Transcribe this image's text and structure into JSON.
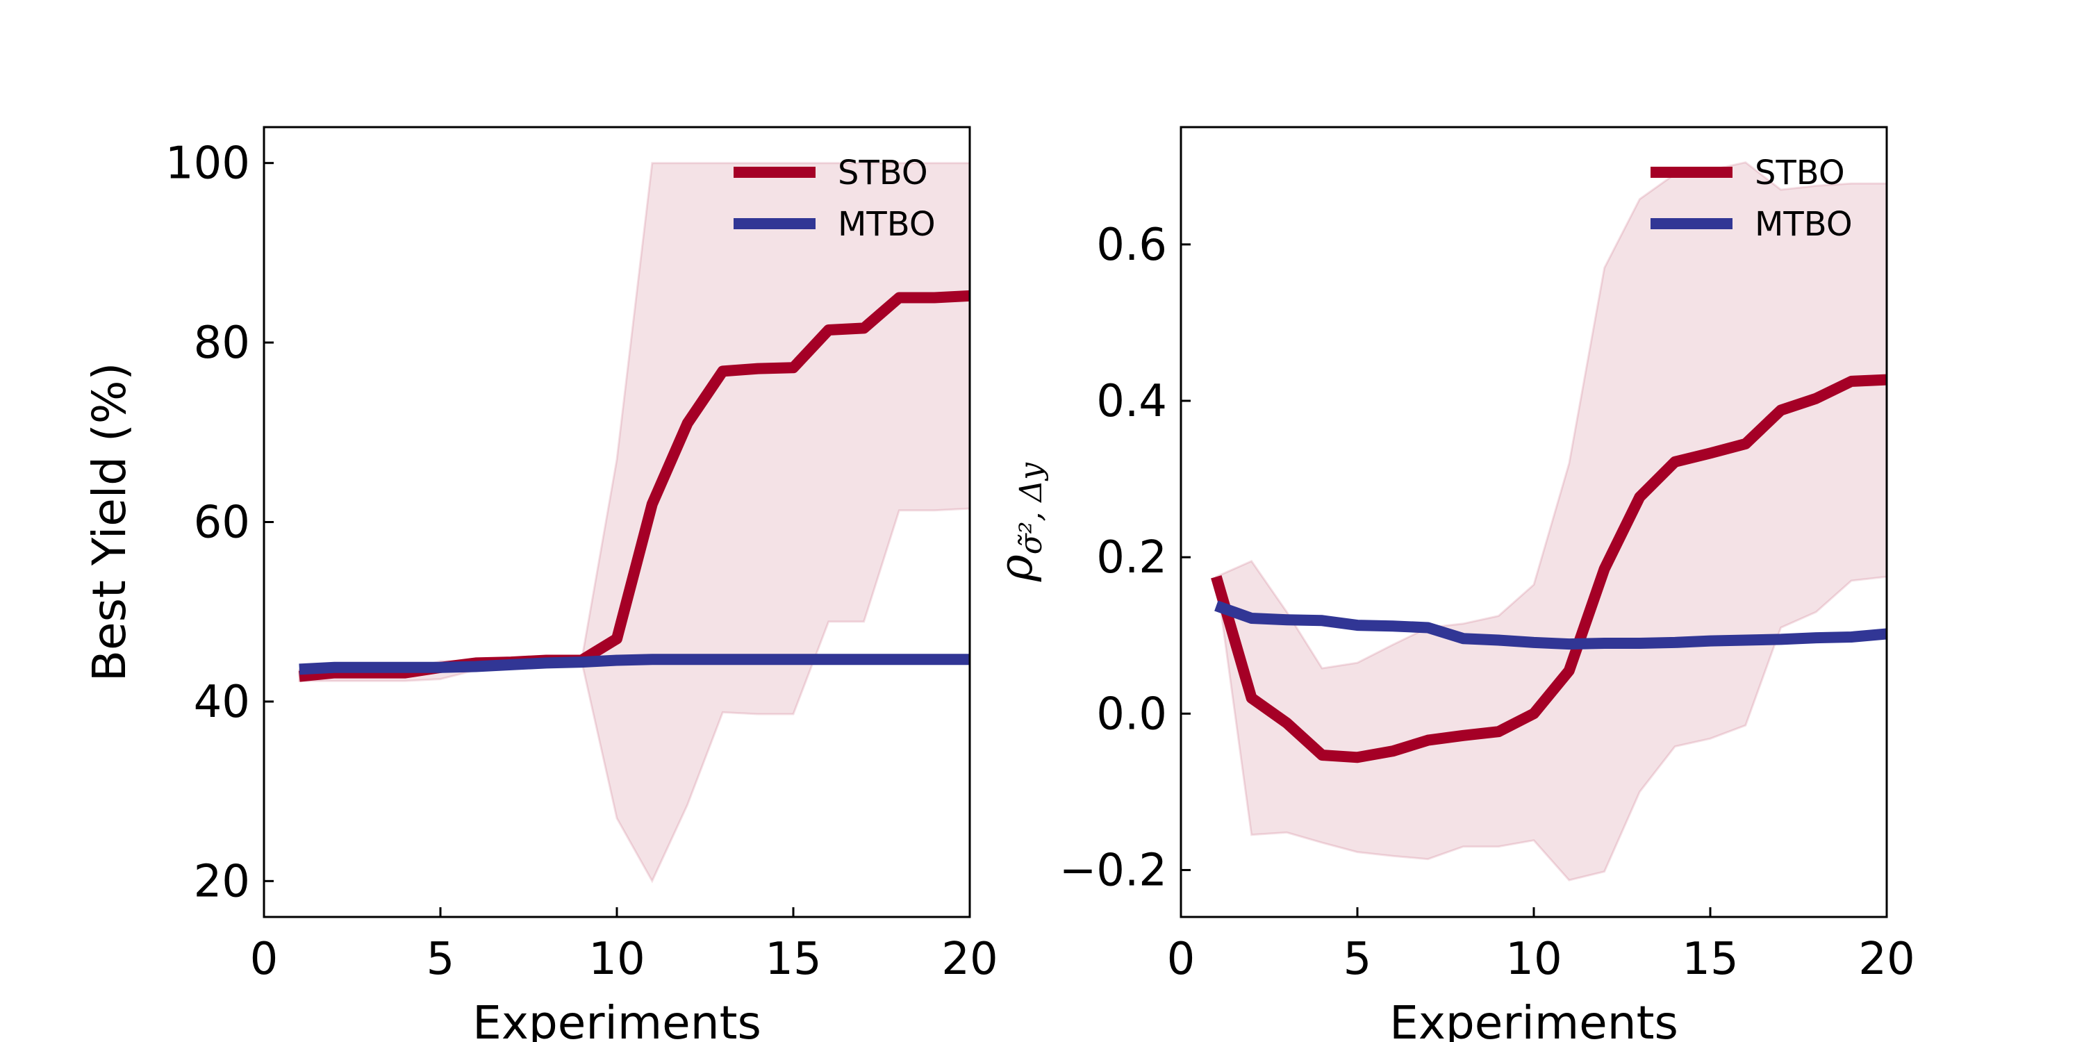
{
  "chart_data": [
    {
      "type": "line",
      "title": "",
      "xlabel": "Experiments",
      "ylabel": "Best Yield (%)",
      "xlim": [
        0,
        20
      ],
      "ylim": [
        16,
        104
      ],
      "xticks": [
        0,
        5,
        10,
        15,
        20
      ],
      "yticks": [
        20,
        40,
        60,
        80,
        100
      ],
      "xtick_labels": [
        "0",
        "5",
        "10",
        "15",
        "20"
      ],
      "ytick_labels": [
        "20",
        "40",
        "60",
        "80",
        "100"
      ],
      "grid": false,
      "legend_position": "top-right",
      "x": [
        1,
        2,
        3,
        4,
        5,
        6,
        7,
        8,
        9,
        10,
        11,
        12,
        13,
        14,
        15,
        16,
        17,
        18,
        19,
        20
      ],
      "series": [
        {
          "name": "STBO",
          "color": "#a50026",
          "values": [
            42.8,
            43.2,
            43.2,
            43.2,
            43.8,
            44.3,
            44.4,
            44.6,
            44.6,
            47.0,
            62.0,
            71.0,
            76.8,
            77.1,
            77.2,
            81.4,
            81.6,
            85.0,
            85.0,
            85.2
          ],
          "band_upper": [
            43.5,
            43.5,
            43.5,
            43.5,
            44.5,
            44.5,
            44.5,
            44.5,
            44.6,
            67.0,
            100,
            100,
            100,
            100,
            100,
            100,
            100,
            100,
            100,
            100
          ],
          "band_lower": [
            42.3,
            42.3,
            42.3,
            42.3,
            42.5,
            43.5,
            44.0,
            44.3,
            44.5,
            27.0,
            20.0,
            28.5,
            38.8,
            38.6,
            38.6,
            48.9,
            48.9,
            61.3,
            61.3,
            61.5
          ]
        },
        {
          "name": "MTBO",
          "color": "#313695",
          "values": [
            43.6,
            43.8,
            43.8,
            43.8,
            43.8,
            43.9,
            44.1,
            44.3,
            44.4,
            44.6,
            44.7,
            44.7,
            44.7,
            44.7,
            44.7,
            44.7,
            44.7,
            44.7,
            44.7,
            44.7
          ]
        }
      ],
      "band_color": "#f2dde2"
    },
    {
      "type": "line",
      "title": "",
      "xlabel": "Experiments",
      "ylabel": "ρσ̃²,Δy",
      "ylabel_parts": {
        "base": "ρ",
        "sub": "σ̃², Δy"
      },
      "xlim": [
        0,
        20
      ],
      "ylim": [
        -0.26,
        0.75
      ],
      "xticks": [
        0,
        5,
        10,
        15,
        20
      ],
      "yticks": [
        -0.2,
        0.0,
        0.2,
        0.4,
        0.6
      ],
      "xtick_labels": [
        "0",
        "5",
        "10",
        "15",
        "20"
      ],
      "ytick_labels": [
        "−0.2",
        "0.0",
        "0.2",
        "0.4",
        "0.6"
      ],
      "grid": false,
      "legend_position": "top-right",
      "x": [
        1,
        2,
        3,
        4,
        5,
        6,
        7,
        8,
        9,
        10,
        11,
        12,
        13,
        14,
        15,
        16,
        17,
        18,
        19,
        20
      ],
      "series": [
        {
          "name": "STBO",
          "color": "#a50026",
          "values": [
            0.175,
            0.02,
            -0.012,
            -0.053,
            -0.056,
            -0.048,
            -0.034,
            -0.028,
            -0.023,
            0.0,
            0.055,
            0.185,
            0.277,
            0.322,
            0.333,
            0.345,
            0.388,
            0.403,
            0.425,
            0.427
          ],
          "band_upper": [
            0.175,
            0.195,
            0.13,
            0.058,
            0.065,
            0.088,
            0.11,
            0.115,
            0.125,
            0.165,
            0.32,
            0.57,
            0.658,
            0.69,
            0.695,
            0.705,
            0.67,
            0.675,
            0.678,
            0.678
          ],
          "band_lower": [
            0.175,
            -0.155,
            -0.152,
            -0.165,
            -0.177,
            -0.182,
            -0.186,
            -0.17,
            -0.17,
            -0.162,
            -0.213,
            -0.202,
            -0.1,
            -0.042,
            -0.032,
            -0.015,
            0.11,
            0.13,
            0.17,
            0.175
          ]
        },
        {
          "name": "MTBO",
          "color": "#313695",
          "values": [
            0.138,
            0.122,
            0.12,
            0.119,
            0.113,
            0.112,
            0.11,
            0.096,
            0.094,
            0.091,
            0.089,
            0.09,
            0.09,
            0.091,
            0.093,
            0.094,
            0.095,
            0.097,
            0.098,
            0.102
          ]
        }
      ],
      "band_color": "#f2dde2"
    }
  ]
}
